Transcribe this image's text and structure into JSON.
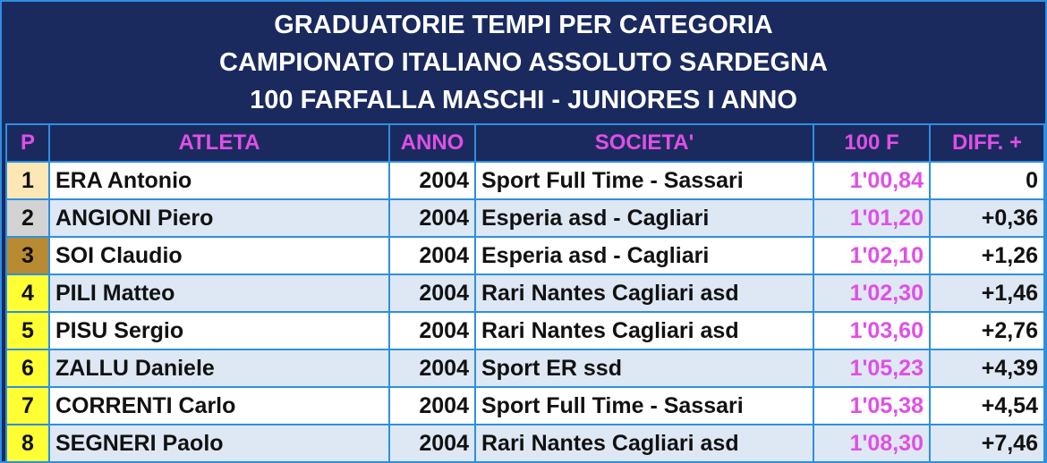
{
  "header": {
    "line1": "GRADUATORIE TEMPI PER CATEGORIA",
    "line2": "CAMPIONATO ITALIANO ASSOLUTO SARDEGNA",
    "line3": "100 FARFALLA MASCHI - JUNIORES I ANNO"
  },
  "columns": [
    "P",
    "ATLETA",
    "ANNO",
    "SOCIETA'",
    "100 F",
    "DIFF. +"
  ],
  "colors": {
    "background": "#1a2a5e",
    "border": "#2e8fe0",
    "accent": "#e04fe6",
    "gold": "#fde8b5",
    "silver": "#d3d3d3",
    "bronze": "#b88a32",
    "highlight": "#ffff33"
  },
  "rows": [
    {
      "pos": "1",
      "athlete": "ERA Antonio",
      "year": "2004",
      "club": "Sport Full Time - Sassari",
      "time": "1'00,84",
      "diff": "0",
      "medal": "gold"
    },
    {
      "pos": "2",
      "athlete": "ANGIONI Piero",
      "year": "2004",
      "club": "Esperia asd - Cagliari",
      "time": "1'01,20",
      "diff": "+0,36",
      "medal": "silver"
    },
    {
      "pos": "3",
      "athlete": "SOI Claudio",
      "year": "2004",
      "club": "Esperia asd - Cagliari",
      "time": "1'02,10",
      "diff": "+1,26",
      "medal": "bronze"
    },
    {
      "pos": "4",
      "athlete": "PILI Matteo",
      "year": "2004",
      "club": "Rari Nantes Cagliari asd",
      "time": "1'02,30",
      "diff": "+1,46",
      "medal": "yellow"
    },
    {
      "pos": "5",
      "athlete": "PISU Sergio",
      "year": "2004",
      "club": "Rari Nantes Cagliari asd",
      "time": "1'03,60",
      "diff": "+2,76",
      "medal": "yellow"
    },
    {
      "pos": "6",
      "athlete": "ZALLU Daniele",
      "year": "2004",
      "club": "Sport ER ssd",
      "time": "1'05,23",
      "diff": "+4,39",
      "medal": "yellow"
    },
    {
      "pos": "7",
      "athlete": "CORRENTI Carlo",
      "year": "2004",
      "club": "Sport Full Time - Sassari",
      "time": "1'05,38",
      "diff": "+4,54",
      "medal": "yellow"
    },
    {
      "pos": "8",
      "athlete": "SEGNERI Paolo",
      "year": "2004",
      "club": "Rari Nantes Cagliari asd",
      "time": "1'08,30",
      "diff": "+7,46",
      "medal": "yellow"
    }
  ]
}
